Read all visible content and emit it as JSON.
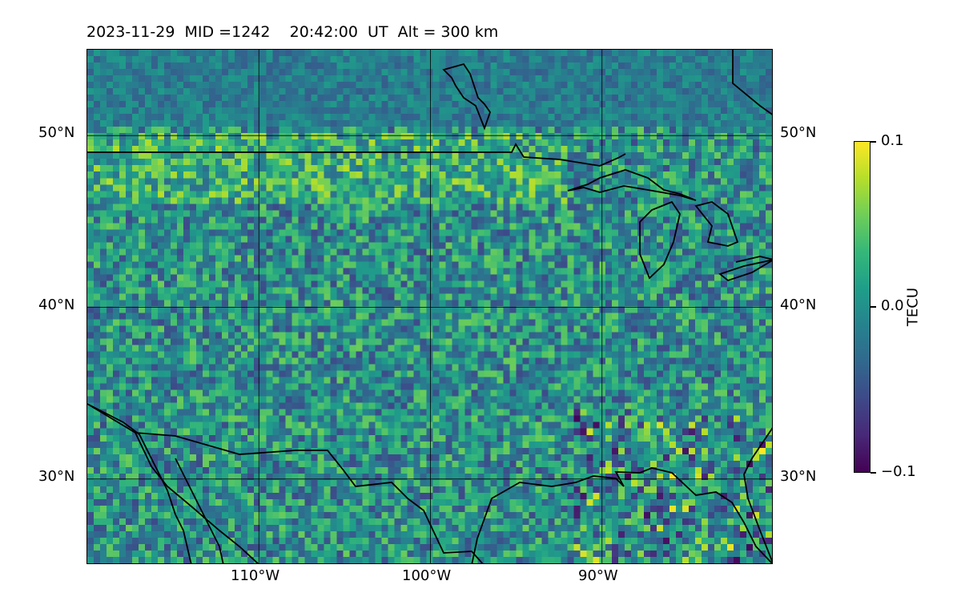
{
  "title": {
    "date": "2023-11-29",
    "mid": "MID =1242",
    "time": "20:42:00  UT",
    "alt": "Alt = 300 km"
  },
  "map": {
    "projection": "lat-lon",
    "lon_range": [
      -120,
      -80
    ],
    "lat_range": [
      25,
      55
    ],
    "lat_ticks": [
      {
        "value": 50,
        "label": "50°N"
      },
      {
        "value": 40,
        "label": "40°N"
      },
      {
        "value": 30,
        "label": "30°N"
      }
    ],
    "lon_ticks": [
      {
        "value": -110,
        "label": "110°W"
      },
      {
        "value": -100,
        "label": "100°W"
      },
      {
        "value": -90,
        "label": "90°W"
      }
    ],
    "gridlines": true,
    "field": "TEC perturbation heatmap (viridis)"
  },
  "colorbar": {
    "label": "TECU",
    "min": -0.1,
    "max": 0.1,
    "colormap": "viridis",
    "ticks": [
      {
        "value": 0.1,
        "label": "0.1"
      },
      {
        "value": 0.0,
        "label": "0.0"
      },
      {
        "value": -0.1,
        "label": "−0.1"
      }
    ]
  },
  "colors": {
    "viridis_low": "#440154",
    "viridis_mid": "#21908d",
    "viridis_high": "#fde725",
    "coastline": "#000000",
    "grid": "#000000"
  }
}
